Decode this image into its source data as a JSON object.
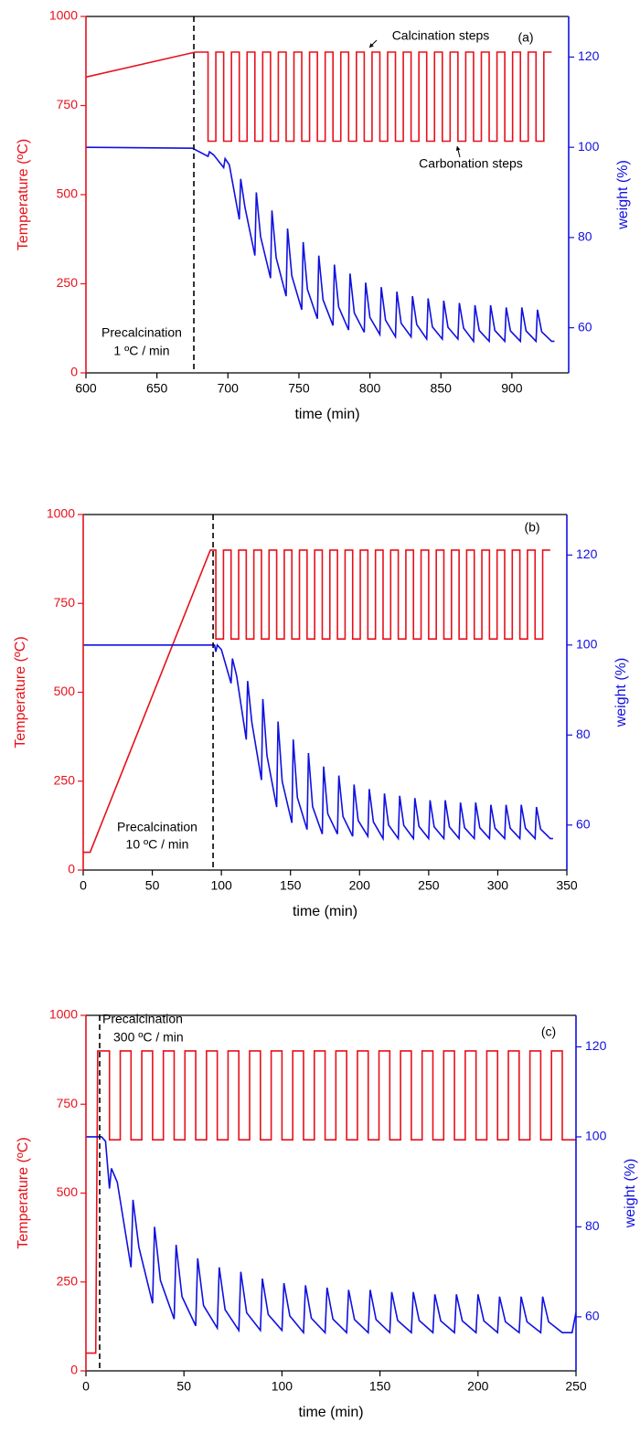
{
  "chart_data": [
    {
      "type": "line",
      "x_label": "time (min)",
      "y_label": "Temperature (ºC)",
      "y2_label": "weight (%)",
      "annotations": [
        "(a)",
        "Calcination steps",
        "Carbonation steps",
        "Precalcination",
        "1 ºC / min"
      ],
      "vline": 676,
      "xlim": [
        600,
        940
      ],
      "xticks": [
        600,
        650,
        700,
        750,
        800,
        850,
        900
      ],
      "ylim": [
        0,
        1000
      ],
      "yticks": [
        0,
        250,
        500,
        750,
        1000
      ],
      "y2lim": [
        50,
        129
      ],
      "y2ticks": [
        60,
        80,
        100,
        120
      ],
      "series": [
        {
          "color": "#e8101a",
          "x": [
            600,
            677,
            686,
            686,
            691.5,
            691.5,
            697,
            697,
            702.5,
            702.5,
            708,
            708,
            713.5,
            713.5,
            719,
            719,
            724.5,
            724.5,
            730,
            730,
            735.5,
            735.5,
            741,
            741,
            746.5,
            746.5,
            752,
            752,
            757.5,
            757.5,
            763,
            763,
            768.5,
            768.5,
            774,
            774,
            779.5,
            779.5,
            785,
            785,
            790.5,
            790.5,
            796,
            796,
            801.5,
            801.5,
            807,
            807,
            812.5,
            812.5,
            818,
            818,
            823.5,
            823.5,
            829,
            829,
            834.5,
            834.5,
            840,
            840,
            845.5,
            845.5,
            851,
            851,
            856.5,
            856.5,
            862,
            862,
            867.5,
            867.5,
            873,
            873,
            878.5,
            878.5,
            884,
            884,
            889.5,
            889.5,
            895,
            895,
            900.5,
            900.5,
            906,
            906,
            911.5,
            911.5,
            917,
            917,
            922.5,
            922.5,
            928
          ],
          "values": [
            830,
            900,
            900,
            650,
            650,
            900,
            900,
            650,
            650,
            900,
            900,
            650,
            650,
            900,
            900,
            650,
            650,
            900,
            900,
            650,
            650,
            900,
            900,
            650,
            650,
            900,
            900,
            650,
            650,
            900,
            900,
            650,
            650,
            900,
            900,
            650,
            650,
            900,
            900,
            650,
            650,
            900,
            900,
            650,
            650,
            900,
            900,
            650,
            650,
            900,
            900,
            650,
            650,
            900,
            900,
            650,
            650,
            900,
            900,
            650,
            650,
            900,
            900,
            650,
            650,
            900,
            900,
            650,
            650,
            900,
            900,
            650,
            650,
            900,
            900,
            650,
            650,
            900,
            900,
            650,
            650,
            900,
            900,
            650,
            650,
            900,
            900,
            650,
            650,
            900,
            900
          ]
        },
        {
          "color": "#1010e0",
          "axis": "y2",
          "x": [
            600,
            675,
            686,
            687,
            690,
            697,
            698,
            701,
            708,
            709,
            712,
            719,
            720,
            723,
            730,
            731,
            734,
            741,
            742,
            745,
            752,
            753,
            756,
            763,
            764,
            767,
            774,
            775,
            778,
            785,
            786,
            789,
            796,
            797,
            800,
            807,
            808,
            811,
            818,
            819,
            822,
            829,
            830,
            833,
            840,
            841,
            844,
            851,
            852,
            855,
            862,
            863,
            866,
            873,
            874,
            877,
            884,
            885,
            888,
            895,
            896,
            899,
            906,
            907,
            910,
            917,
            918,
            921,
            928,
            930
          ],
          "values": [
            100,
            99.8,
            98,
            99,
            98.3,
            95.5,
            97.5,
            96.1,
            84,
            93,
            86.7,
            76,
            90,
            80.2,
            71,
            86,
            75.5,
            67,
            82,
            71.5,
            64,
            79,
            68.5,
            62,
            76,
            66.2,
            60.5,
            74,
            64.6,
            59.5,
            72,
            63.3,
            59,
            70,
            62.3,
            58.5,
            69,
            61.7,
            58,
            68,
            61,
            58,
            67,
            60.7,
            57.5,
            66.5,
            60.2,
            57.5,
            66,
            60.1,
            57.5,
            65.5,
            59.9,
            57,
            65,
            59.4,
            57,
            65,
            59.4,
            57,
            64.5,
            59.3,
            57,
            64.5,
            59.3,
            57,
            64,
            59.1,
            57,
            57
          ]
        }
      ]
    },
    {
      "type": "line",
      "x_label": "time (min)",
      "y_label": "Temperature (ºC)",
      "y2_label": "weight (%)",
      "annotations": [
        "(b)",
        "Precalcination",
        "10 ºC / min"
      ],
      "vline": 94,
      "xlim": [
        0,
        350
      ],
      "xticks": [
        0,
        50,
        100,
        150,
        200,
        250,
        300,
        350
      ],
      "ylim": [
        0,
        1000
      ],
      "yticks": [
        0,
        250,
        500,
        750,
        1000
      ],
      "y2lim": [
        50,
        129
      ],
      "y2ticks": [
        60,
        80,
        100,
        120
      ],
      "series": [
        {
          "color": "#e8101a",
          "x": [
            0,
            5,
            92,
            96,
            96,
            101.5,
            101.5,
            107,
            107,
            112.5,
            112.5,
            118,
            118,
            123.5,
            123.5,
            129,
            129,
            134.5,
            134.5,
            140,
            140,
            145.5,
            145.5,
            151,
            151,
            156.5,
            156.5,
            162,
            162,
            167.5,
            167.5,
            173,
            173,
            178.5,
            178.5,
            184,
            184,
            189.5,
            189.5,
            195,
            195,
            200.5,
            200.5,
            206,
            206,
            211.5,
            211.5,
            217,
            217,
            222.5,
            222.5,
            228,
            228,
            233.5,
            233.5,
            239,
            239,
            244.5,
            244.5,
            250,
            250,
            255.5,
            255.5,
            261,
            261,
            266.5,
            266.5,
            272,
            272,
            277.5,
            277.5,
            283,
            283,
            288.5,
            288.5,
            294,
            294,
            299.5,
            299.5,
            305,
            305,
            310.5,
            310.5,
            316,
            316,
            321.5,
            321.5,
            327,
            327,
            332.5,
            332.5,
            338
          ],
          "values": [
            50,
            50,
            900,
            900,
            650,
            650,
            900,
            900,
            650,
            650,
            900,
            900,
            650,
            650,
            900,
            900,
            650,
            650,
            900,
            900,
            650,
            650,
            900,
            900,
            650,
            650,
            900,
            900,
            650,
            650,
            900,
            900,
            650,
            650,
            900,
            900,
            650,
            650,
            900,
            900,
            650,
            650,
            900,
            900,
            650,
            650,
            900,
            900,
            650,
            650,
            900,
            900,
            650,
            650,
            900,
            900,
            650,
            650,
            900,
            900,
            650,
            650,
            900,
            900,
            650,
            650,
            900,
            900,
            650,
            650,
            900,
            900,
            650,
            650,
            900,
            900,
            650,
            650,
            900,
            900,
            650,
            650,
            900,
            900,
            650,
            650,
            900,
            900,
            650,
            650,
            900,
            900
          ]
        },
        {
          "color": "#1010e0",
          "axis": "y2",
          "x": [
            0,
            95,
            96,
            97,
            100,
            107,
            108,
            111,
            118,
            119,
            122,
            129,
            130,
            133,
            140,
            141,
            144,
            151,
            152,
            155,
            162,
            163,
            166,
            173,
            174,
            177,
            184,
            185,
            188,
            195,
            196,
            199,
            206,
            207,
            210,
            217,
            218,
            221,
            228,
            229,
            232,
            239,
            240,
            243,
            250,
            251,
            254,
            261,
            262,
            265,
            272,
            273,
            276,
            283,
            284,
            287,
            294,
            295,
            298,
            305,
            306,
            309,
            316,
            317,
            320,
            327,
            328,
            331,
            338,
            340
          ],
          "values": [
            100,
            100,
            98.5,
            100,
            99,
            91.5,
            97,
            93.2,
            79,
            92,
            82.9,
            70,
            88,
            75.4,
            64,
            83,
            69.7,
            60.5,
            79,
            66.1,
            59,
            76,
            64.1,
            58,
            73,
            62.5,
            58,
            71,
            61.9,
            57.5,
            69,
            61,
            57.5,
            68,
            60.7,
            57,
            67,
            60,
            57,
            66.5,
            59.9,
            57,
            66,
            59.7,
            57,
            65.5,
            59.6,
            57,
            65.5,
            59.6,
            57,
            65,
            59.4,
            57,
            65,
            59.4,
            57,
            64.5,
            59.3,
            57,
            64.5,
            59.3,
            57,
            64.5,
            59.3,
            57,
            64,
            59.1,
            57,
            57
          ]
        }
      ]
    },
    {
      "type": "line",
      "x_label": "time (min)",
      "y_label": "Temperature (ºC)",
      "y2_label": "weight (%)",
      "annotations": [
        "(c)",
        "Precalcination",
        "300 ºC / min"
      ],
      "vline": 7,
      "xlim": [
        0,
        250
      ],
      "xticks": [
        0,
        50,
        100,
        150,
        200,
        250
      ],
      "ylim": [
        0,
        1000
      ],
      "yticks": [
        0,
        250,
        500,
        750,
        1000
      ],
      "y2lim": [
        48,
        127
      ],
      "y2ticks": [
        60,
        80,
        100,
        120
      ],
      "series": [
        {
          "color": "#e8101a",
          "x": [
            0,
            5,
            6,
            12,
            12,
            17.5,
            17.5,
            23,
            23,
            28.5,
            28.5,
            34,
            34,
            39.5,
            39.5,
            45,
            45,
            50.5,
            50.5,
            56,
            56,
            61.5,
            61.5,
            67,
            67,
            72.5,
            72.5,
            78,
            78,
            83.5,
            83.5,
            89,
            89,
            94.5,
            94.5,
            100,
            100,
            105.5,
            105.5,
            111,
            111,
            116.5,
            116.5,
            122,
            122,
            127.5,
            127.5,
            133,
            133,
            138.5,
            138.5,
            144,
            144,
            149.5,
            149.5,
            155,
            155,
            160.5,
            160.5,
            166,
            166,
            171.5,
            171.5,
            177,
            177,
            182.5,
            182.5,
            188,
            188,
            193.5,
            193.5,
            199,
            199,
            204.5,
            204.5,
            210,
            210,
            215.5,
            215.5,
            221,
            221,
            226.5,
            226.5,
            232,
            232,
            237.5,
            237.5,
            243,
            243,
            250
          ],
          "values": [
            50,
            50,
            900,
            900,
            650,
            650,
            900,
            900,
            650,
            650,
            900,
            900,
            650,
            650,
            900,
            900,
            650,
            650,
            900,
            900,
            650,
            650,
            900,
            900,
            650,
            650,
            900,
            900,
            650,
            650,
            900,
            900,
            650,
            650,
            900,
            900,
            650,
            650,
            900,
            900,
            650,
            650,
            900,
            900,
            650,
            650,
            900,
            900,
            650,
            650,
            900,
            900,
            650,
            650,
            900,
            900,
            650,
            650,
            900,
            900,
            650,
            650,
            900,
            900,
            650,
            650,
            900,
            900,
            650,
            650,
            900,
            900,
            650,
            650,
            900,
            900,
            650,
            650,
            900,
            900,
            650,
            650,
            900,
            900,
            650,
            650,
            900,
            900,
            650,
            650
          ]
        },
        {
          "color": "#1010e0",
          "axis": "y2",
          "x": [
            0,
            8,
            10,
            12,
            13,
            16,
            23,
            24,
            27,
            34,
            35,
            38,
            45,
            46,
            49,
            56,
            57,
            60,
            67,
            68,
            71,
            78,
            79,
            82,
            89,
            90,
            93,
            100,
            101,
            104,
            111,
            112,
            115,
            122,
            123,
            126,
            133,
            134,
            137,
            144,
            145,
            148,
            155,
            156,
            159,
            166,
            167,
            170,
            177,
            178,
            181,
            188,
            189,
            192,
            199,
            200,
            203,
            210,
            211,
            214,
            221,
            222,
            225,
            232,
            233,
            236,
            243,
            248,
            250
          ],
          "values": [
            100,
            100,
            99,
            88.5,
            93,
            89.9,
            71,
            86,
            75.5,
            63,
            80,
            68.1,
            59.5,
            76,
            64.5,
            58,
            73,
            62.5,
            57.5,
            71,
            61.6,
            57,
            70,
            60.9,
            57,
            68.5,
            60.5,
            57,
            67.5,
            60.2,
            56.5,
            67,
            59.7,
            56.5,
            66.5,
            59.5,
            56.5,
            66,
            59.4,
            56.5,
            66,
            59.4,
            56.5,
            65.5,
            59.2,
            56.5,
            65.5,
            59.2,
            56.5,
            65,
            59.1,
            56.5,
            65,
            59.1,
            56.5,
            65,
            59.1,
            56.5,
            64.5,
            58.9,
            56.5,
            64.5,
            58.9,
            56.5,
            64.5,
            58.9,
            56.5,
            56.5,
            61
          ]
        }
      ]
    }
  ]
}
